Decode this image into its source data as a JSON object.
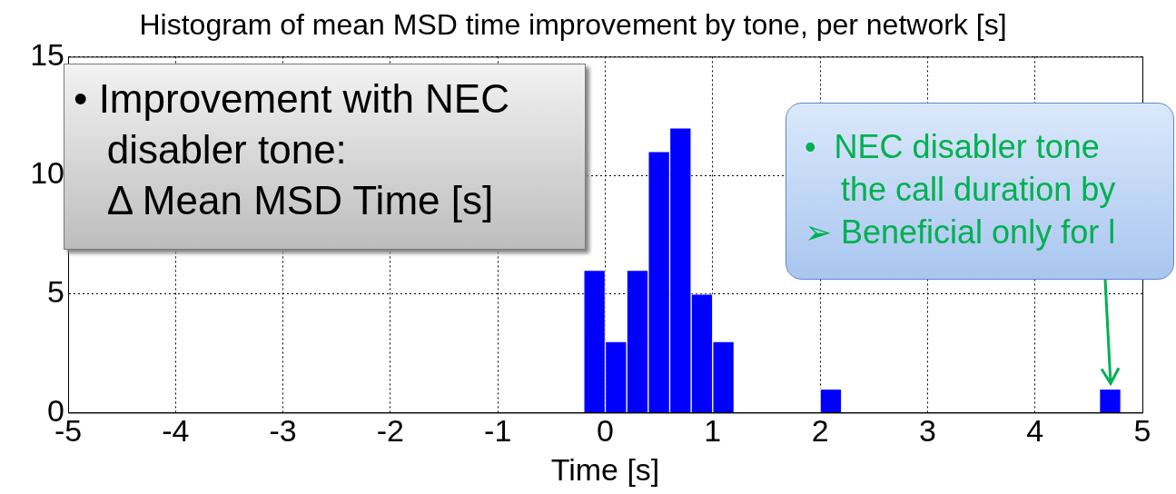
{
  "chart_data": {
    "type": "histogram",
    "title": "Histogram of mean MSD time improvement by tone, per network [s]",
    "xlabel": "Time [s]",
    "bins": [
      -0.2,
      0,
      0.2,
      0.4,
      0.6,
      0.8,
      1.0,
      1.2,
      1.4,
      1.6,
      1.8,
      2.0,
      2.2,
      2.4,
      2.6,
      2.8,
      3.0,
      3.2,
      3.4,
      3.6,
      3.8,
      4.0,
      4.2,
      4.4,
      4.6,
      4.8
    ],
    "values": [
      6,
      3,
      6,
      11,
      12,
      5,
      3,
      0,
      0,
      0,
      0,
      1,
      0,
      0,
      0,
      0,
      0,
      0,
      0,
      0,
      0,
      0,
      0,
      0,
      1
    ],
    "color": "#0000ff",
    "xlim": [
      -5,
      5
    ],
    "ylim": [
      0,
      15
    ],
    "xticks": [
      -5,
      -4,
      -3,
      -2,
      -1,
      0,
      1,
      2,
      3,
      4,
      5
    ],
    "yticks": [
      0,
      5,
      10,
      15
    ],
    "grid": true,
    "annotations": [
      "• Improvement with NEC\n   disabler tone:\n   Δ Mean MSD Time [s]",
      "•  NEC disabler tone\n    the call duration by\n➢ Beneficial only for l"
    ]
  }
}
